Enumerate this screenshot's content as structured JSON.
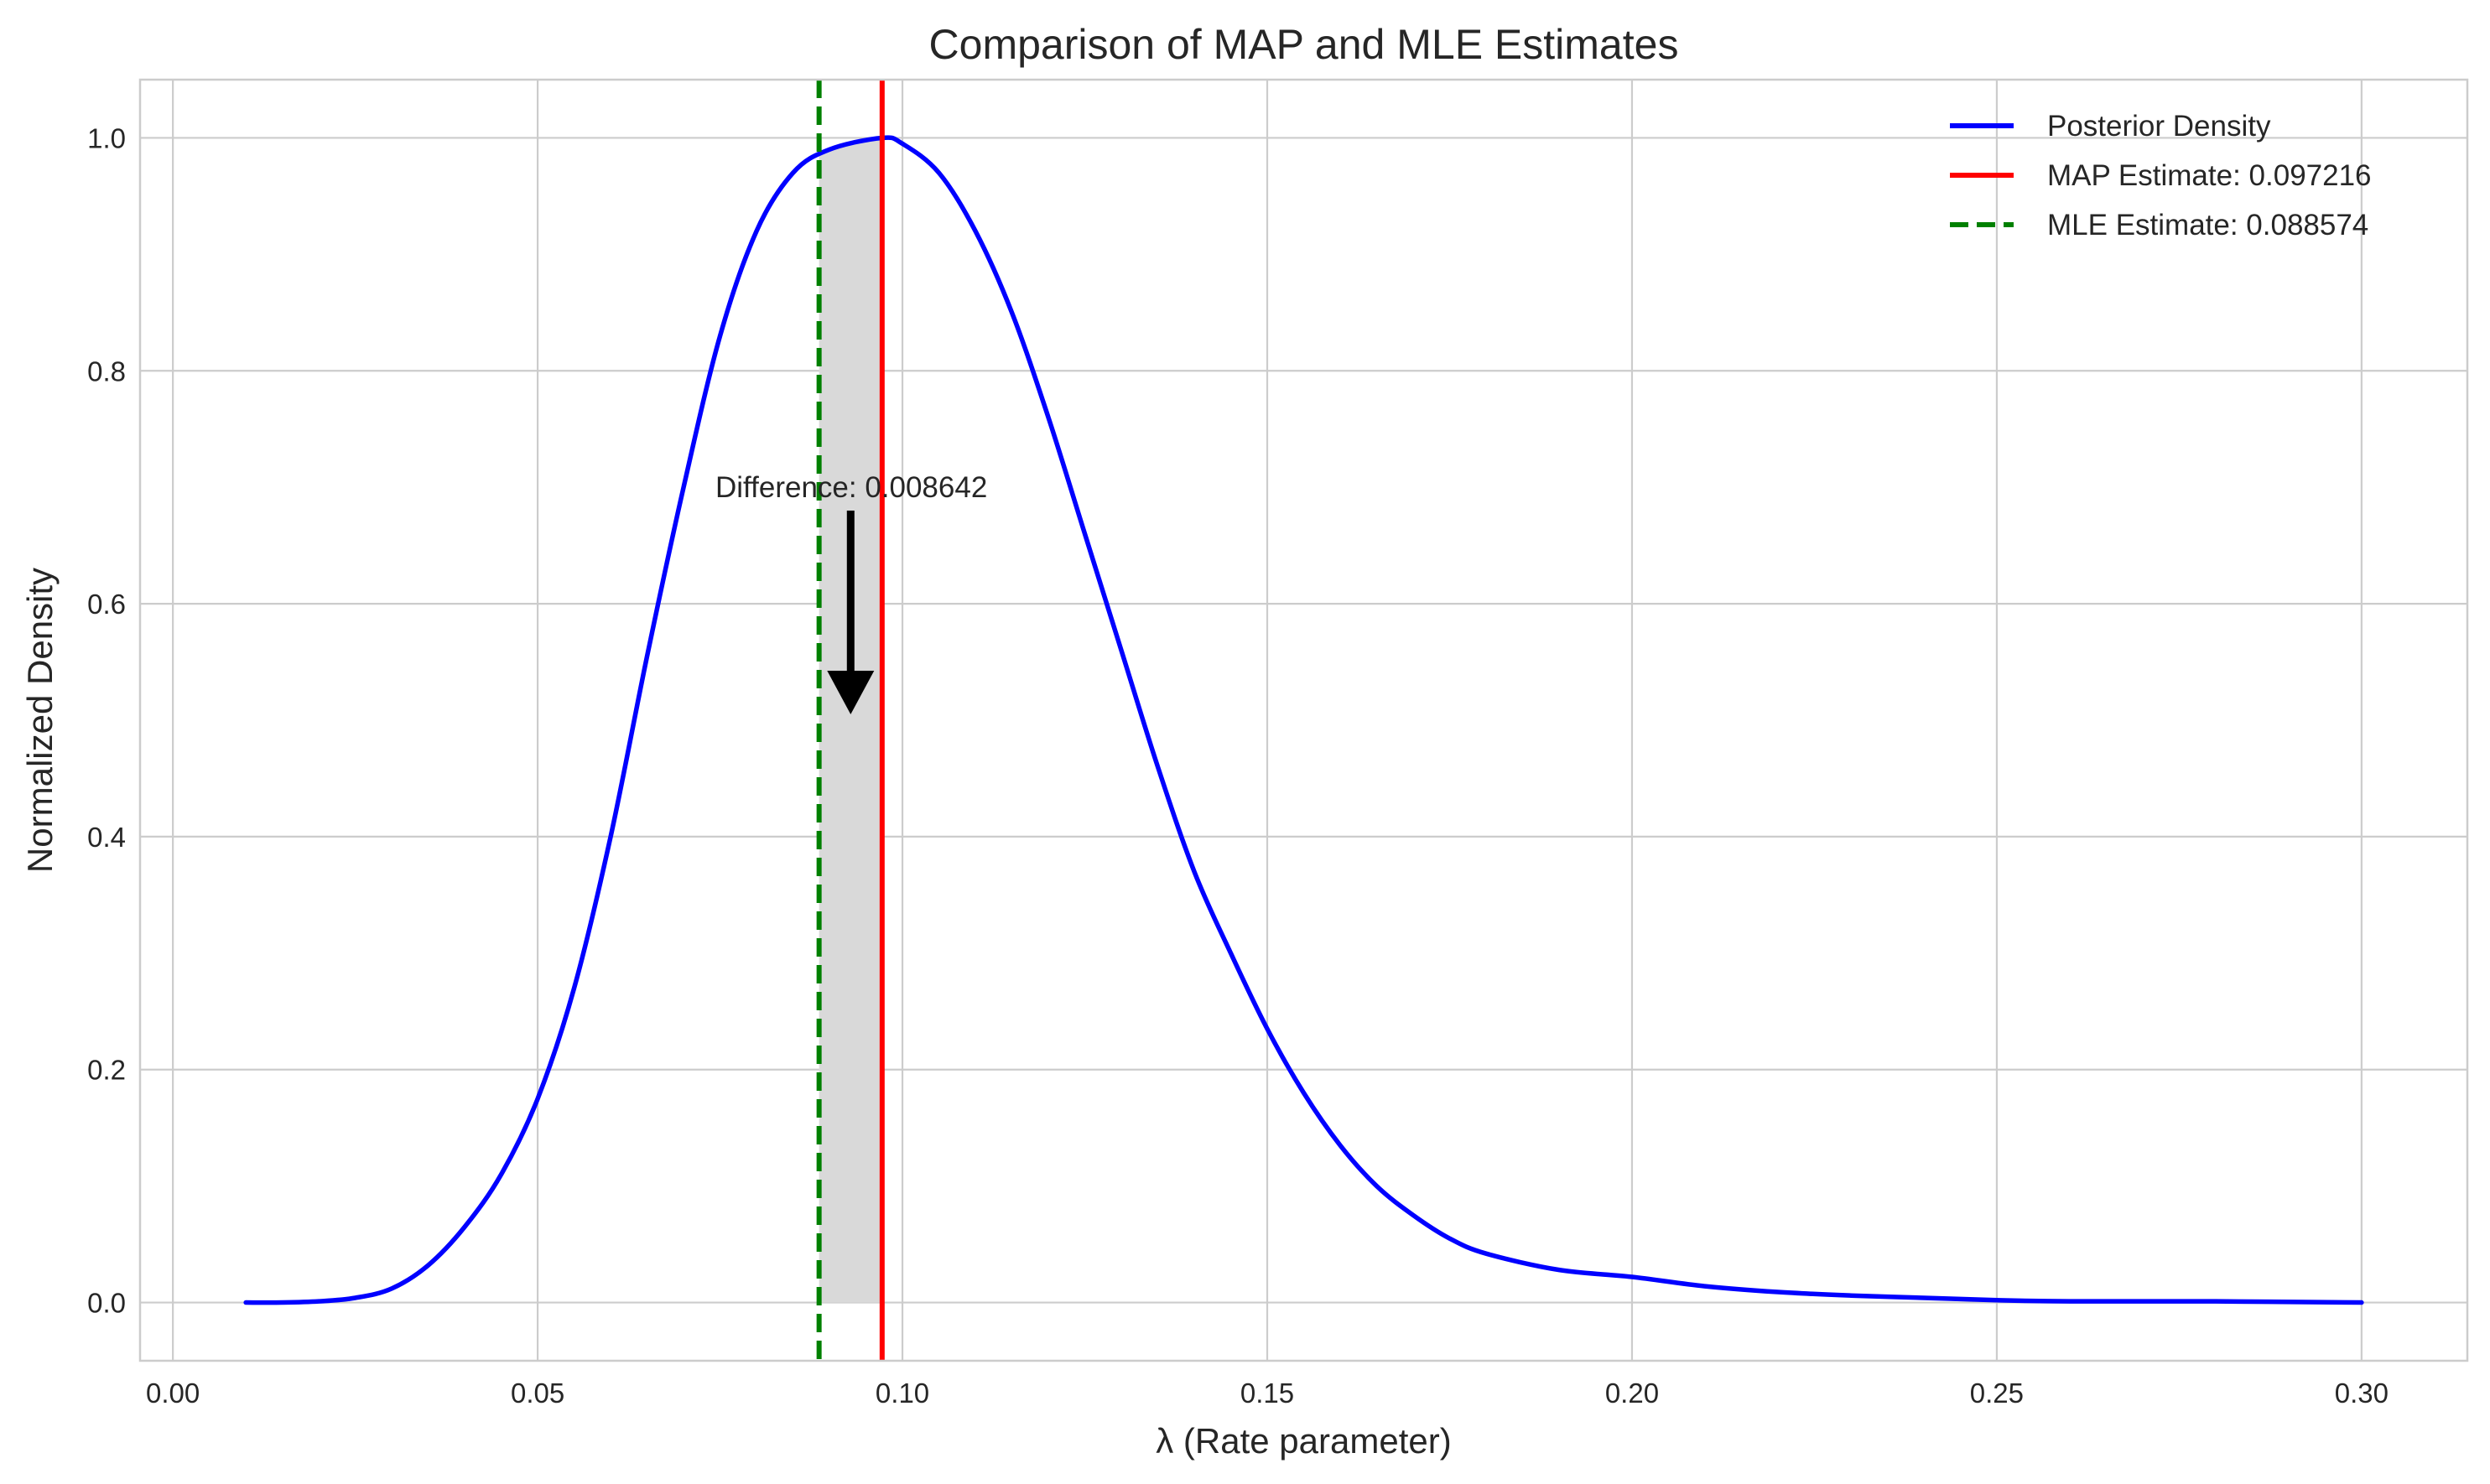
{
  "chart_data": {
    "type": "line",
    "title": "Comparison of MAP and MLE Estimates",
    "xlabel": "λ (Rate parameter)",
    "ylabel": "Normalized Density",
    "xlim": [
      -0.0045,
      0.3145
    ],
    "ylim": [
      -0.05,
      1.05
    ],
    "xticks": [
      0.0,
      0.05,
      0.1,
      0.15,
      0.2,
      0.25,
      0.3
    ],
    "xtick_labels": [
      "0.00",
      "0.05",
      "0.10",
      "0.15",
      "0.20",
      "0.25",
      "0.30"
    ],
    "yticks": [
      0.0,
      0.2,
      0.4,
      0.6,
      0.8,
      1.0
    ],
    "ytick_labels": [
      "0.0",
      "0.2",
      "0.4",
      "0.6",
      "0.8",
      "1.0"
    ],
    "grid": true,
    "legend_position": "top-right",
    "series": [
      {
        "name": "Posterior Density",
        "color": "#0000ff",
        "style": "solid",
        "x": [
          0.01,
          0.015,
          0.02,
          0.025,
          0.03,
          0.035,
          0.04,
          0.045,
          0.05,
          0.055,
          0.06,
          0.065,
          0.07,
          0.075,
          0.08,
          0.085,
          0.09,
          0.0972,
          0.1,
          0.105,
          0.11,
          0.115,
          0.12,
          0.125,
          0.13,
          0.135,
          0.14,
          0.145,
          0.15,
          0.155,
          0.16,
          0.165,
          0.17,
          0.175,
          0.18,
          0.19,
          0.2,
          0.21,
          0.22,
          0.23,
          0.24,
          0.25,
          0.26,
          0.28,
          0.3
        ],
        "y": [
          0.0,
          0.0,
          0.001,
          0.004,
          0.012,
          0.032,
          0.065,
          0.11,
          0.175,
          0.27,
          0.4,
          0.555,
          0.7,
          0.83,
          0.92,
          0.97,
          0.99,
          1.0,
          0.995,
          0.97,
          0.92,
          0.85,
          0.76,
          0.66,
          0.56,
          0.46,
          0.37,
          0.3,
          0.235,
          0.18,
          0.135,
          0.1,
          0.075,
          0.055,
          0.042,
          0.028,
          0.022,
          0.014,
          0.009,
          0.006,
          0.004,
          0.002,
          0.001,
          0.001,
          0.0
        ]
      },
      {
        "name": "MAP Estimate: 0.097216",
        "color": "#ff0000",
        "style": "solid",
        "type": "vline",
        "x": 0.097216
      },
      {
        "name": "MLE Estimate: 0.088574",
        "color": "#008000",
        "style": "dashed",
        "type": "vline",
        "x": 0.088574
      }
    ],
    "shaded_region": {
      "x_from": 0.088574,
      "x_to": 0.097216,
      "color": "#d9d9d9"
    },
    "annotation": {
      "text": "Difference: 0.008642",
      "text_x": 0.093,
      "text_y": 0.7,
      "arrow_from": [
        0.0929,
        0.68
      ],
      "arrow_to": [
        0.0929,
        0.505
      ]
    }
  }
}
